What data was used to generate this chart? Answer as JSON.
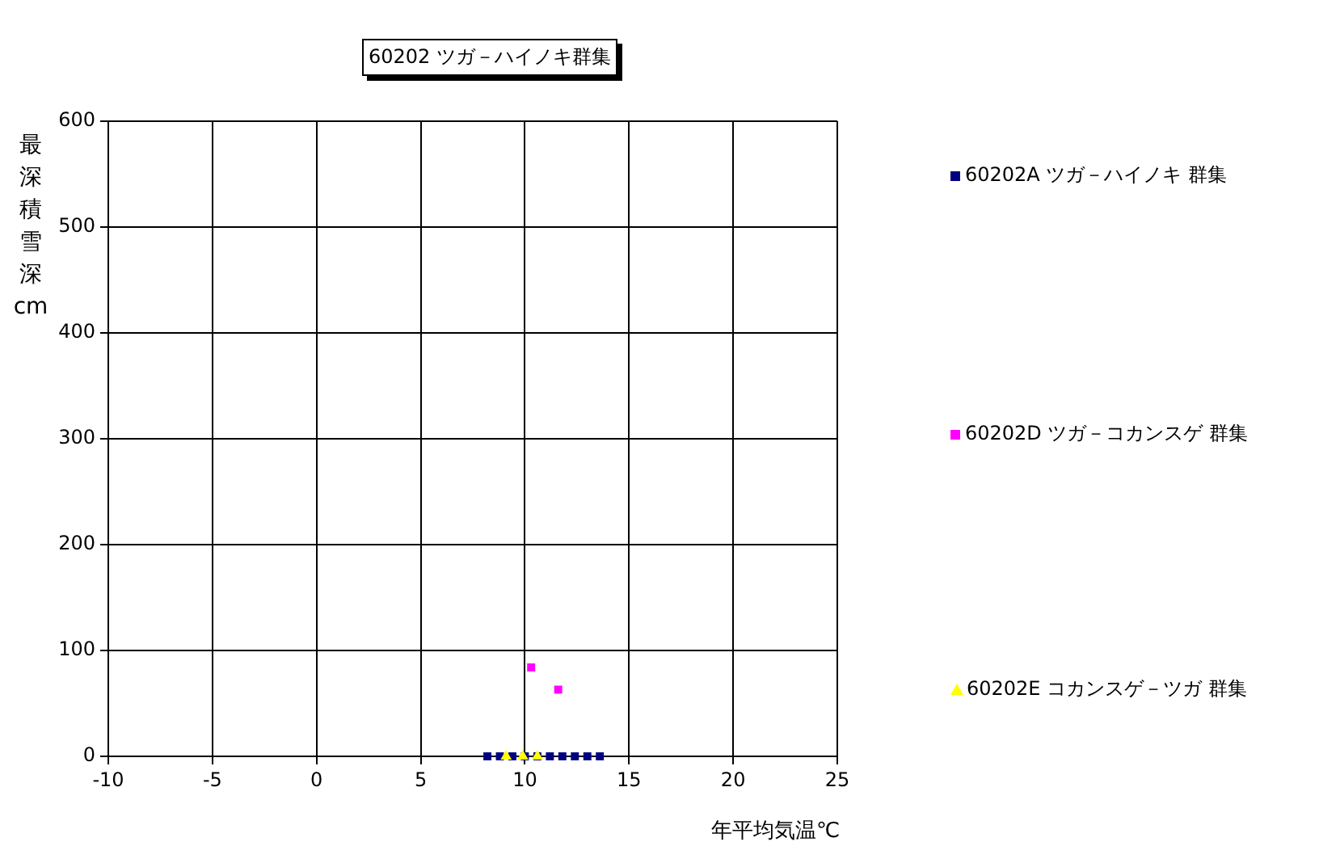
{
  "chart_data": {
    "type": "scatter",
    "title": "60202 ツガ－ハイノキ群集",
    "xlabel": "年平均気温℃",
    "ylabel": "最深積雪深cm",
    "xlim": [
      -10,
      25
    ],
    "xticks": [
      -10,
      -5,
      0,
      5,
      10,
      15,
      20,
      25
    ],
    "ylim": [
      0,
      600
    ],
    "yticks": [
      0,
      100,
      200,
      300,
      400,
      500,
      600
    ],
    "grid": true,
    "legend": "right",
    "series": [
      {
        "name": "60202A ツガ－ハイノキ 群集",
        "color": "#000080",
        "marker": "square",
        "x": [
          8.2,
          8.8,
          9.4,
          10.0,
          10.6,
          11.2,
          11.8,
          12.4,
          13.0,
          13.6
        ],
        "values": [
          0,
          0,
          0,
          0,
          0,
          0,
          0,
          0,
          0,
          0
        ]
      },
      {
        "name": "60202D ツガ－コカンスゲ 群集",
        "color": "#ff00ff",
        "marker": "square",
        "x": [
          10.3,
          11.6
        ],
        "values": [
          84,
          63
        ]
      },
      {
        "name": "60202E コカンスゲ－ツガ 群集",
        "color": "#ffff00",
        "marker": "triangle",
        "x": [
          9.1,
          9.9,
          10.6
        ],
        "values": [
          0,
          0,
          0
        ]
      }
    ]
  }
}
